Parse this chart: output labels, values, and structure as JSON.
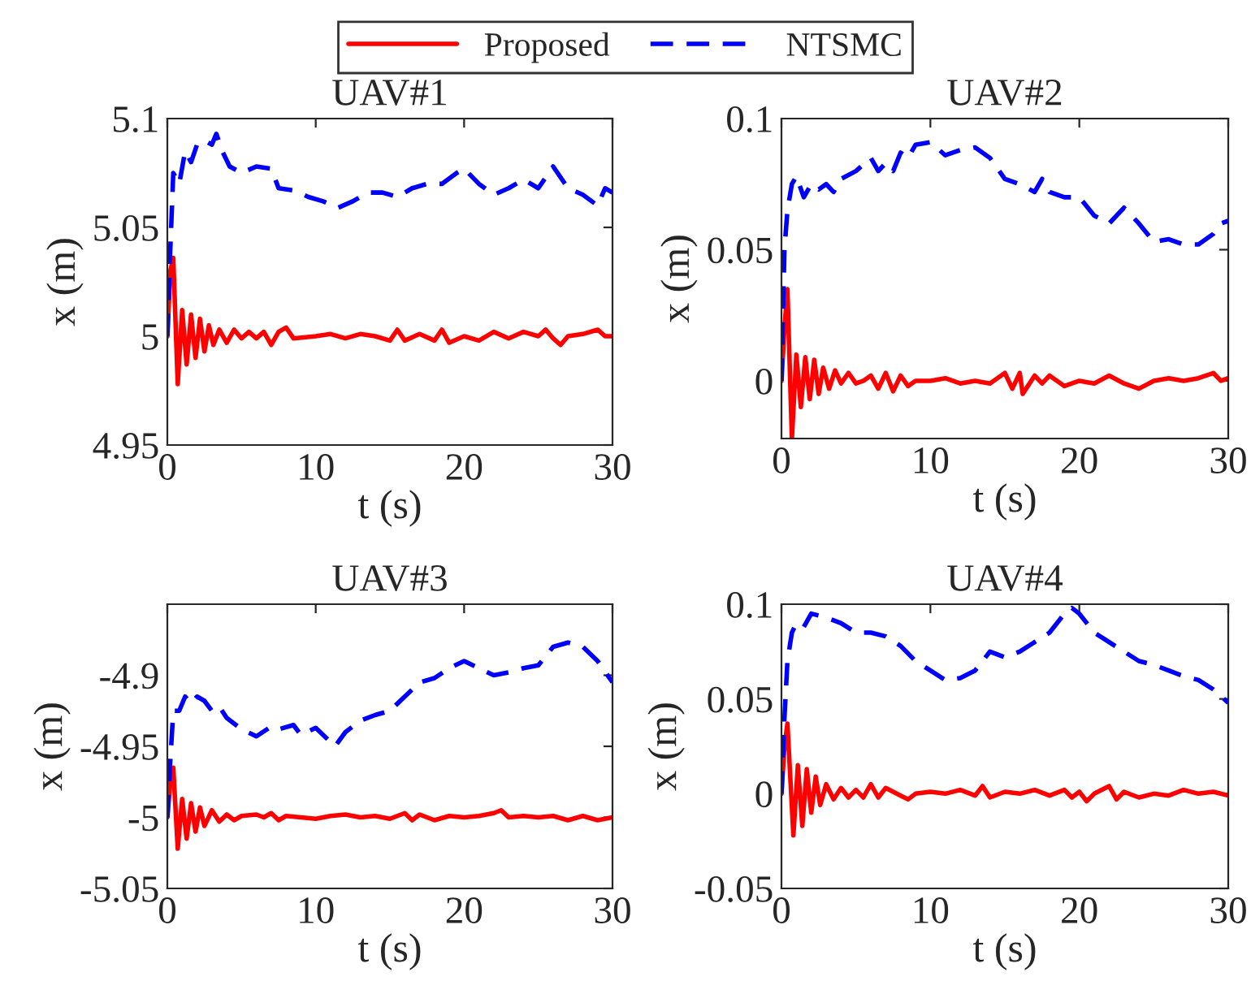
{
  "chart_data": [
    {
      "type": "line",
      "title": "UAV#1",
      "xlabel": "t (s)",
      "ylabel": "x (m)",
      "legend": "top",
      "xlim": [
        0,
        30
      ],
      "xticks": [
        0,
        10,
        20,
        30
      ],
      "ylim": [
        4.95,
        5.1
      ],
      "yticks": [
        4.95,
        5,
        5.05,
        5.1
      ],
      "series": [
        {
          "name": "Proposed",
          "color": "#ff0000",
          "line_style": "solid",
          "x": [
            0,
            0.2,
            0.4,
            0.7,
            1.0,
            1.3,
            1.6,
            1.9,
            2.2,
            2.5,
            2.8,
            3.1,
            3.5,
            4,
            4.5,
            5,
            5.5,
            6,
            6.5,
            7,
            7.5,
            8,
            8.5,
            10,
            11,
            12,
            13,
            14,
            15,
            15.5,
            16,
            17,
            18,
            18.5,
            19,
            20,
            21,
            22,
            23,
            24,
            25,
            25.5,
            26,
            26.5,
            27,
            28,
            29,
            29.5,
            30
          ],
          "values": [
            5.0,
            5.03,
            5.036,
            4.978,
            5.012,
            4.987,
            5.01,
            4.99,
            5.008,
            4.993,
            5.005,
            4.996,
            5.003,
            4.997,
            5.003,
            4.999,
            5.002,
            4.999,
            5.002,
            4.996,
            5.002,
            5.004,
            4.999,
            5.0,
            5.001,
            4.999,
            5.001,
            5.0,
            4.998,
            5.003,
            4.998,
            5.001,
            4.998,
            5.003,
            4.997,
            5.0,
            4.998,
            5.002,
            4.999,
            5.002,
            5.0,
            5.003,
            4.999,
            4.996,
            5.0,
            5.001,
            5.003,
            5.0,
            5.0
          ]
        },
        {
          "name": "NTSMC",
          "color": "#0000ff",
          "line_style": "dashed",
          "x": [
            0,
            0.2,
            0.4,
            0.8,
            1.2,
            1.6,
            2,
            2.5,
            3,
            3.3,
            3.7,
            4.2,
            5,
            6,
            7,
            7.5,
            8.5,
            9.5,
            10.5,
            11.5,
            12.5,
            13.5,
            14.5,
            15.5,
            16.5,
            17.5,
            18.5,
            19.5,
            20,
            21,
            22,
            23,
            24,
            25,
            26,
            27,
            28,
            29,
            29.5,
            30
          ],
          "values": [
            5.0,
            5.04,
            5.075,
            5.07,
            5.085,
            5.08,
            5.088,
            5.09,
            5.088,
            5.093,
            5.085,
            5.078,
            5.075,
            5.078,
            5.077,
            5.068,
            5.067,
            5.064,
            5.062,
            5.059,
            5.062,
            5.066,
            5.066,
            5.064,
            5.068,
            5.07,
            5.07,
            5.075,
            5.077,
            5.07,
            5.065,
            5.068,
            5.072,
            5.068,
            5.078,
            5.068,
            5.065,
            5.06,
            5.068,
            5.066
          ]
        }
      ]
    },
    {
      "type": "line",
      "title": "UAV#2",
      "xlabel": "t (s)",
      "ylabel": "x (m)",
      "xlim": [
        0,
        30
      ],
      "xticks": [
        0,
        10,
        20,
        30
      ],
      "ylim": [
        -0.022,
        0.1
      ],
      "yticks": [
        0,
        0.05,
        0.1
      ],
      "series": [
        {
          "color": "#ff0000",
          "line_style": "solid",
          "x": [
            0,
            0.2,
            0.4,
            0.7,
            1.0,
            1.3,
            1.6,
            1.9,
            2.2,
            2.5,
            2.8,
            3.2,
            3.6,
            4,
            4.5,
            5,
            5.5,
            6,
            6.5,
            7,
            7.5,
            8,
            8.5,
            9,
            10,
            11,
            12,
            13,
            14,
            15,
            15.5,
            16,
            16.2,
            17,
            17.5,
            18,
            19,
            20,
            21,
            22,
            23,
            24,
            25,
            26,
            27,
            28,
            29,
            29.5,
            30
          ],
          "values": [
            0,
            0.02,
            0.035,
            -0.022,
            0.01,
            -0.01,
            0.009,
            -0.007,
            0.008,
            -0.005,
            0.005,
            -0.003,
            0.004,
            -0.001,
            0.003,
            -0.001,
            0.0,
            0.002,
            -0.003,
            0.003,
            -0.004,
            0.002,
            -0.002,
            0.0,
            0.0,
            0.001,
            -0.001,
            0.0,
            -0.001,
            0.003,
            -0.003,
            0.003,
            -0.005,
            0.002,
            -0.001,
            0.002,
            -0.002,
            0.0,
            -0.001,
            0.002,
            -0.001,
            -0.003,
            0.0,
            0.001,
            0.0,
            0.001,
            0.003,
            0.0,
            0.001
          ]
        },
        {
          "color": "#0000ff",
          "line_style": "dashed",
          "x": [
            0,
            0.2,
            0.4,
            0.7,
            1,
            1.5,
            2,
            2.5,
            3,
            3.5,
            4,
            5,
            6,
            6.5,
            7,
            7.5,
            8,
            8.5,
            9,
            10,
            11,
            12,
            13,
            14,
            15,
            16,
            17,
            17.5,
            18,
            19,
            20,
            21,
            22,
            23,
            24,
            25,
            26,
            27,
            28,
            29,
            29.5,
            30
          ],
          "values": [
            0,
            0.05,
            0.065,
            0.075,
            0.078,
            0.07,
            0.075,
            0.073,
            0.075,
            0.072,
            0.077,
            0.08,
            0.085,
            0.08,
            0.083,
            0.08,
            0.087,
            0.085,
            0.09,
            0.091,
            0.086,
            0.088,
            0.089,
            0.085,
            0.077,
            0.075,
            0.072,
            0.077,
            0.072,
            0.07,
            0.07,
            0.063,
            0.06,
            0.066,
            0.06,
            0.053,
            0.054,
            0.052,
            0.052,
            0.056,
            0.06,
            0.061
          ]
        }
      ]
    },
    {
      "type": "line",
      "title": "UAV#3",
      "xlabel": "t (s)",
      "ylabel": "x (m)",
      "xlim": [
        0,
        30
      ],
      "xticks": [
        0,
        10,
        20,
        30
      ],
      "ylim": [
        -5.05,
        -4.85
      ],
      "yticks": [
        -5.05,
        -5,
        -4.95,
        -4.9
      ],
      "series": [
        {
          "color": "#ff0000",
          "line_style": "solid",
          "x": [
            0,
            0.2,
            0.4,
            0.7,
            1.0,
            1.3,
            1.6,
            1.9,
            2.2,
            2.5,
            3,
            3.5,
            4,
            4.5,
            5,
            6,
            6.5,
            7,
            7.5,
            8,
            9,
            10,
            11,
            12,
            13,
            14,
            15,
            16,
            16.5,
            17,
            18,
            19,
            20,
            21,
            22,
            22.5,
            23,
            24,
            25,
            26,
            27,
            28,
            29,
            30
          ],
          "values": [
            -5.0,
            -4.975,
            -4.965,
            -5.022,
            -4.987,
            -5.015,
            -4.99,
            -5.01,
            -4.993,
            -5.006,
            -4.995,
            -5.003,
            -4.998,
            -5.002,
            -4.999,
            -4.998,
            -5.0,
            -4.997,
            -5.002,
            -4.999,
            -5.0,
            -5.001,
            -4.999,
            -4.998,
            -5.0,
            -4.999,
            -5.001,
            -4.997,
            -5.002,
            -4.998,
            -5.002,
            -4.999,
            -5.0,
            -4.999,
            -4.997,
            -4.995,
            -5.0,
            -4.999,
            -5.0,
            -4.999,
            -5.002,
            -4.999,
            -5.002,
            -5.0
          ]
        },
        {
          "color": "#0000ff",
          "line_style": "dashed",
          "x": [
            0,
            0.2,
            0.4,
            0.8,
            1.2,
            1.6,
            2,
            2.5,
            3,
            3.5,
            4,
            5,
            6,
            7,
            7.5,
            8.5,
            9,
            10,
            10.5,
            11.3,
            12,
            13,
            14,
            15,
            16,
            17,
            18,
            19,
            20,
            21,
            22,
            23,
            24,
            25,
            26,
            27,
            28,
            29,
            30
          ],
          "values": [
            -5.0,
            -4.96,
            -4.925,
            -4.925,
            -4.915,
            -4.92,
            -4.915,
            -4.918,
            -4.925,
            -4.922,
            -4.93,
            -4.938,
            -4.943,
            -4.936,
            -4.938,
            -4.935,
            -4.942,
            -4.937,
            -4.942,
            -4.95,
            -4.94,
            -4.932,
            -4.928,
            -4.925,
            -4.915,
            -4.905,
            -4.902,
            -4.895,
            -4.89,
            -4.895,
            -4.9,
            -4.898,
            -4.895,
            -4.893,
            -4.88,
            -4.877,
            -4.88,
            -4.89,
            -4.905
          ]
        }
      ]
    },
    {
      "type": "line",
      "title": "UAV#4",
      "xlabel": "t (s)",
      "ylabel": "x (m)",
      "xlim": [
        0,
        30
      ],
      "xticks": [
        0,
        10,
        20,
        30
      ],
      "ylim": [
        -0.05,
        0.1
      ],
      "yticks": [
        -0.05,
        0,
        0.05,
        0.1
      ],
      "series": [
        {
          "color": "#ff0000",
          "line_style": "solid",
          "x": [
            0,
            0.2,
            0.4,
            0.8,
            1.1,
            1.4,
            1.7,
            2,
            2.3,
            2.6,
            3,
            3.5,
            4,
            4.5,
            5,
            5.5,
            6,
            6.5,
            7,
            8,
            8.5,
            9,
            10,
            11,
            12,
            13,
            13.5,
            14,
            15,
            16,
            17,
            18,
            19,
            19.5,
            20,
            20.5,
            21,
            22,
            22.5,
            23,
            24,
            25,
            26,
            27,
            28,
            29,
            30
          ],
          "values": [
            0,
            0.025,
            0.037,
            -0.022,
            0.015,
            -0.017,
            0.013,
            -0.01,
            0.009,
            -0.006,
            0.005,
            -0.003,
            0.003,
            -0.002,
            0.002,
            -0.002,
            0.005,
            -0.002,
            0.003,
            -0.001,
            -0.003,
            0.0,
            0.001,
            0.0,
            0.002,
            -0.001,
            0.004,
            -0.002,
            0.001,
            0.0,
            0.002,
            -0.001,
            0.002,
            -0.002,
            0.001,
            -0.004,
            0.0,
            0.004,
            -0.003,
            0.001,
            -0.002,
            0.0,
            -0.001,
            0.002,
            0.0,
            0.001,
            -0.001
          ]
        },
        {
          "color": "#0000ff",
          "line_style": "dashed",
          "x": [
            0,
            0.2,
            0.4,
            0.7,
            1,
            1.5,
            2,
            3,
            4,
            5,
            6,
            7,
            8,
            9,
            10,
            11,
            12,
            13,
            14,
            15,
            16,
            17,
            18,
            19,
            19.5,
            20,
            21,
            22,
            23,
            24,
            25,
            26,
            27,
            28,
            29,
            30
          ],
          "values": [
            0,
            0.04,
            0.07,
            0.085,
            0.09,
            0.088,
            0.095,
            0.093,
            0.09,
            0.085,
            0.085,
            0.083,
            0.078,
            0.07,
            0.065,
            0.06,
            0.061,
            0.065,
            0.075,
            0.072,
            0.075,
            0.08,
            0.085,
            0.095,
            0.098,
            0.095,
            0.085,
            0.08,
            0.075,
            0.07,
            0.068,
            0.065,
            0.062,
            0.06,
            0.055,
            0.048
          ]
        }
      ]
    }
  ]
}
